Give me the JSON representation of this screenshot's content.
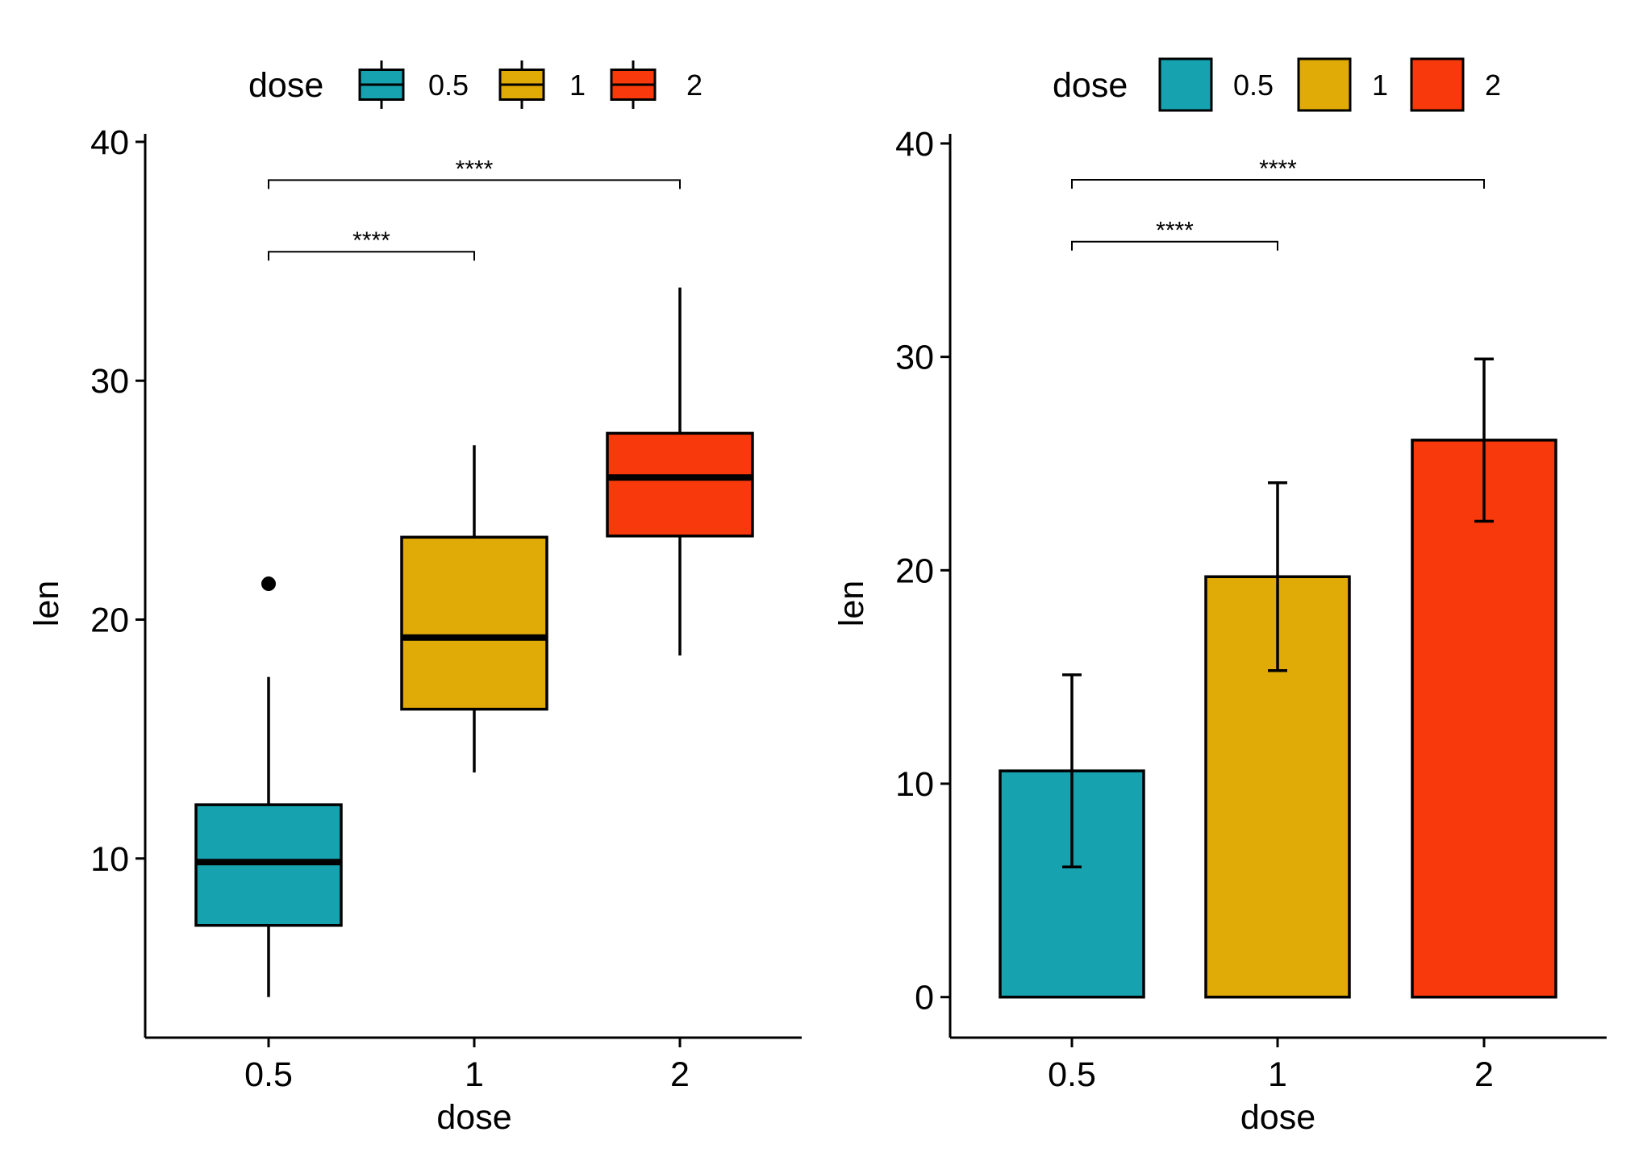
{
  "chart_data": [
    {
      "type": "box",
      "legend": {
        "title": "dose",
        "entries": [
          "0.5",
          "1",
          "2"
        ],
        "placement": "top"
      },
      "xlabel": "dose",
      "ylabel": "len",
      "categories": [
        "0.5",
        "1",
        "2"
      ],
      "colors": [
        "#16A3AF",
        "#E0AA07",
        "#F8390C"
      ],
      "ylim": [
        2.5,
        40.2
      ],
      "yticks": [
        10,
        20,
        30,
        40
      ],
      "boxes": [
        {
          "category": "0.5",
          "whisker_low": 4.2,
          "q1": 7.2,
          "median": 9.85,
          "q3": 12.25,
          "whisker_high": 17.6,
          "outliers": [
            21.5
          ]
        },
        {
          "category": "1",
          "whisker_low": 13.6,
          "q1": 16.25,
          "median": 19.25,
          "q3": 23.45,
          "whisker_high": 27.3,
          "outliers": []
        },
        {
          "category": "2",
          "whisker_low": 18.5,
          "q1": 23.5,
          "median": 25.95,
          "q3": 27.8,
          "whisker_high": 33.9,
          "outliers": []
        }
      ],
      "comparisons": [
        {
          "from": "0.5",
          "to": "1",
          "y": 35.4,
          "label": "****"
        },
        {
          "from": "0.5",
          "to": "2",
          "y": 38.4,
          "label": "****"
        }
      ]
    },
    {
      "type": "bar",
      "legend": {
        "title": "dose",
        "entries": [
          "0.5",
          "1",
          "2"
        ],
        "placement": "top"
      },
      "xlabel": "dose",
      "ylabel": "len",
      "categories": [
        "0.5",
        "1",
        "2"
      ],
      "colors": [
        "#16A3AF",
        "#E0AA07",
        "#F8390C"
      ],
      "ylim": [
        -1.9,
        40.3
      ],
      "yticks": [
        0,
        10,
        20,
        30,
        40
      ],
      "values": [
        10.6,
        19.7,
        26.1
      ],
      "error_low": [
        6.1,
        15.3,
        22.3
      ],
      "error_high": [
        15.1,
        24.1,
        29.9
      ],
      "comparisons": [
        {
          "from": "0.5",
          "to": "1",
          "y": 35.4,
          "label": "****"
        },
        {
          "from": "0.5",
          "to": "2",
          "y": 38.3,
          "label": "****"
        }
      ]
    }
  ]
}
